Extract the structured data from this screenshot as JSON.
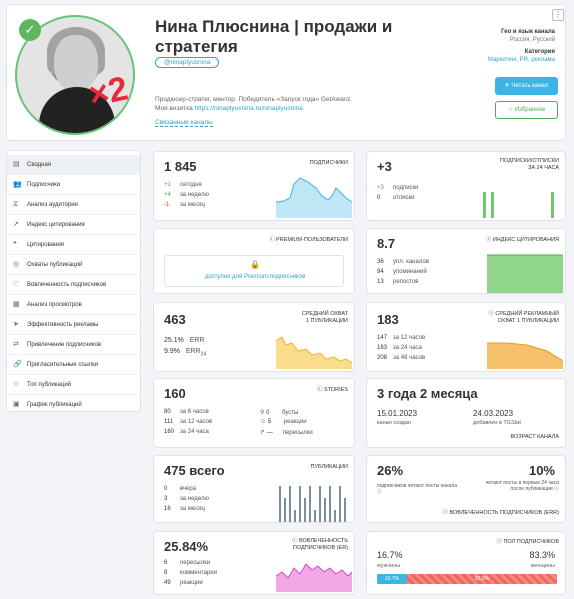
{
  "profile": {
    "title": "Нина Плюснина | продажи и стратегия",
    "handle": "@ninaplyusnina",
    "description_line1": "Продюсер-стратег, ментор. Победитель «Запуск года» GetAward.",
    "description_line2_prefix": "Моя визитка ",
    "description_link": "https://ninaplyusnina.ru/ninaplyusnina",
    "related_channels": "Связанные каналы",
    "geo_label": "Гео и язык канала",
    "geo_value": "Россия, Русский",
    "category_label": "Категория",
    "category_value": "Маркетинг, PR, реклама",
    "read_button": "Читать канал",
    "favorite_button": "Избранное",
    "avatar_badge": "×2",
    "more_menu": "⋮"
  },
  "sidebar": {
    "items": [
      {
        "label": "Сводная",
        "icon": "▤"
      },
      {
        "label": "Подписчики",
        "icon": "👥"
      },
      {
        "label": "Анализ аудитории",
        "icon": "⧖"
      },
      {
        "label": "Индекс цитирования",
        "icon": "↗"
      },
      {
        "label": "Цитирования",
        "icon": "❝"
      },
      {
        "label": "Охваты публикаций",
        "icon": "◎"
      },
      {
        "label": "Вовлеченность подписчиков",
        "icon": "♡"
      },
      {
        "label": "Анализ просмотров",
        "icon": "▦"
      },
      {
        "label": "Эффективность рекламы",
        "icon": "➤"
      },
      {
        "label": "Привлечение подписчиков",
        "icon": "⇄"
      },
      {
        "label": "Пригласительные ссылки",
        "icon": "🔗"
      },
      {
        "label": "Топ публикаций",
        "icon": "☆"
      },
      {
        "label": "График публикаций",
        "icon": "▣"
      }
    ]
  },
  "widgets": {
    "subs": {
      "value": "1 845",
      "caption": "ПОДПИСЧИКИ",
      "rows": [
        {
          "n": "+1",
          "t": "сегодня"
        },
        {
          "n": "+4",
          "t": "за неделю"
        },
        {
          "n": "-1",
          "t": "за месяц"
        }
      ]
    },
    "subs_unsubs": {
      "value": "+3",
      "caption1": "ПОДПИСКИ/ОТПИСКИ",
      "caption2": "ЗА 24 ЧАСА",
      "rows": [
        {
          "n": "+3",
          "t": "подписки"
        },
        {
          "n": "0",
          "t": "отписки"
        }
      ]
    },
    "premium": {
      "caption": "PREMIUM-ПОЛЬЗОВАТЕЛИ",
      "lock": "🔒",
      "link": "доступно для Premium-подписчиков"
    },
    "citation": {
      "value": "8.7",
      "caption": "ИНДЕКС ЦИТИРОВАНИЯ",
      "rows": [
        {
          "n": "36",
          "t": "упл. каналов"
        },
        {
          "n": "94",
          "t": "упоминаний"
        },
        {
          "n": "13",
          "t": "репостов"
        }
      ]
    },
    "reach": {
      "value": "463",
      "caption1": "СРЕДНИЙ ОХВАТ",
      "caption2": "1 ПУБЛИКАЦИИ",
      "err": "25.1%",
      "err_label": "ERR",
      "err24": "9.9%",
      "err24_label": "ERR",
      "err24_sub": "24"
    },
    "ad_reach": {
      "value": "183",
      "caption1": "СРЕДНИЙ РЕКЛАМНЫЙ",
      "caption2": "ОХВАТ 1 ПУБЛИКАЦИИ",
      "rows": [
        {
          "n": "147",
          "t": "за 12 часов"
        },
        {
          "n": "183",
          "t": "за 24 часа"
        },
        {
          "n": "208",
          "t": "за 48 часов"
        }
      ]
    },
    "stories": {
      "value": "160",
      "caption": "STORIES",
      "left": [
        {
          "n": "80",
          "t": "за 6 часов"
        },
        {
          "n": "111",
          "t": "за 12 часов"
        },
        {
          "n": "160",
          "t": "за 24 часа"
        }
      ],
      "right": [
        {
          "n": "0",
          "t": "бусты"
        },
        {
          "n": "5",
          "t": "реакции"
        },
        {
          "n": "—",
          "t": "пересылки"
        }
      ]
    },
    "age": {
      "value": "3 года 2 месяца",
      "created_date": "15.01.2023",
      "created_label": "канал создан",
      "added_date": "24.03.2023",
      "added_label": "добавлен в TGStat",
      "caption": "ВОЗРАСТ КАНАЛА"
    },
    "posts": {
      "value": "475 всего",
      "caption": "ПУБЛИКАЦИИ",
      "rows": [
        {
          "n": "0",
          "t": "вчера"
        },
        {
          "n": "3",
          "t": "за неделю"
        },
        {
          "n": "16",
          "t": "за месяц"
        }
      ]
    },
    "engagement": {
      "pct1": "26%",
      "desc1": "подписчиков читают посты канала",
      "pct2": "10%",
      "desc2": "читают посты в первые 24 часа после публикации",
      "caption": "ВОВЛЕЧЕННОСТЬ ПОДПИСЧИКОВ (ERR)"
    },
    "er": {
      "value": "25.84%",
      "caption1": "ВОВЛЕЧЕННОСТЬ",
      "caption2": "ПОДПИСЧИКОВ (ER)",
      "rows": [
        {
          "n": "6",
          "t": "пересылки"
        },
        {
          "n": "8",
          "t": "комментарии"
        },
        {
          "n": "49",
          "t": "реакции"
        }
      ]
    },
    "gender": {
      "caption": "ПОЛ ПОДПИСЧИКОВ",
      "male_pct": "16.7%",
      "male_label": "мужчины",
      "female_pct": "83.3%",
      "female_label": "женщины",
      "male_share": 0.167
    }
  },
  "colors": {
    "accent": "#3cb4e5",
    "green": "#4caf50",
    "red": "#e53935",
    "reach_fill": "#f5c84c",
    "ad_fill": "#f2b44a",
    "er_fill": "#e243c7",
    "subs_fill": "#7fd0ec",
    "cite_fill": "#6cc86a",
    "female": "#f2665c"
  }
}
